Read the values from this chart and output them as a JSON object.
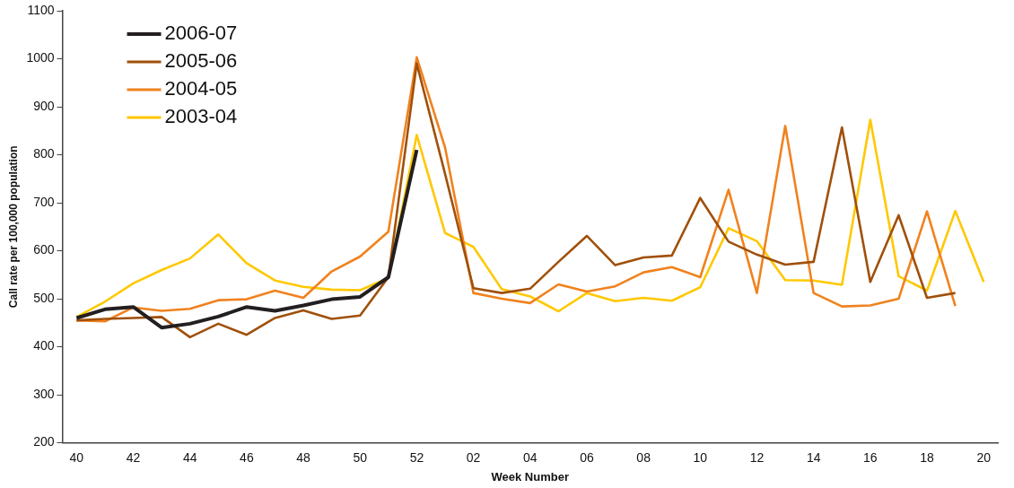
{
  "chart_data": {
    "type": "line",
    "xlabel": "Week Number",
    "ylabel": "Call rate per 100,000 population",
    "categories": [
      "40",
      null,
      "42",
      null,
      "44",
      null,
      "46",
      null,
      "48",
      null,
      "50",
      null,
      "52",
      null,
      "02",
      null,
      "04",
      null,
      "06",
      null,
      "08",
      null,
      "10",
      null,
      "12",
      null,
      "14",
      null,
      "16",
      null,
      "18",
      null,
      "20"
    ],
    "series": [
      {
        "name": "2006-07",
        "color": "#231f20",
        "values": [
          460,
          478,
          483,
          440,
          448,
          463,
          483,
          475,
          486,
          499,
          504,
          545,
          810,
          null,
          null,
          null,
          null,
          null,
          null,
          null,
          null,
          null,
          null,
          null,
          null,
          null,
          null,
          null,
          null,
          null,
          null,
          null,
          null
        ]
      },
      {
        "name": "2005-06",
        "color": "#a0500a",
        "values": [
          455,
          458,
          460,
          462,
          420,
          448,
          425,
          460,
          476,
          458,
          465,
          545,
          990,
          760,
          522,
          512,
          521,
          577,
          631,
          570,
          586,
          590,
          710,
          619,
          592,
          571,
          577,
          857,
          535,
          674,
          502,
          512,
          null
        ]
      },
      {
        "name": "2004-05",
        "color": "#f0821e",
        "values": [
          455,
          453,
          482,
          475,
          479,
          497,
          499,
          517,
          502,
          557,
          588,
          640,
          1003,
          815,
          512,
          500,
          491,
          530,
          515,
          526,
          555,
          566,
          545,
          727,
          512,
          860,
          512,
          484,
          486,
          500,
          682,
          485,
          null
        ]
      },
      {
        "name": "2003-04",
        "color": "#ffc800",
        "values": [
          462,
          494,
          532,
          560,
          584,
          634,
          574,
          538,
          525,
          519,
          518,
          543,
          841,
          637,
          608,
          520,
          505,
          474,
          512,
          495,
          502,
          496,
          524,
          647,
          620,
          539,
          538,
          529,
          873,
          547,
          517,
          683,
          535
        ]
      }
    ],
    "ylim": [
      200,
      1100
    ],
    "yticks": [
      200,
      300,
      400,
      500,
      600,
      700,
      800,
      900,
      1000,
      1100
    ],
    "grid": false,
    "legend": "top left",
    "marker": "none",
    "line_style": "solid"
  }
}
